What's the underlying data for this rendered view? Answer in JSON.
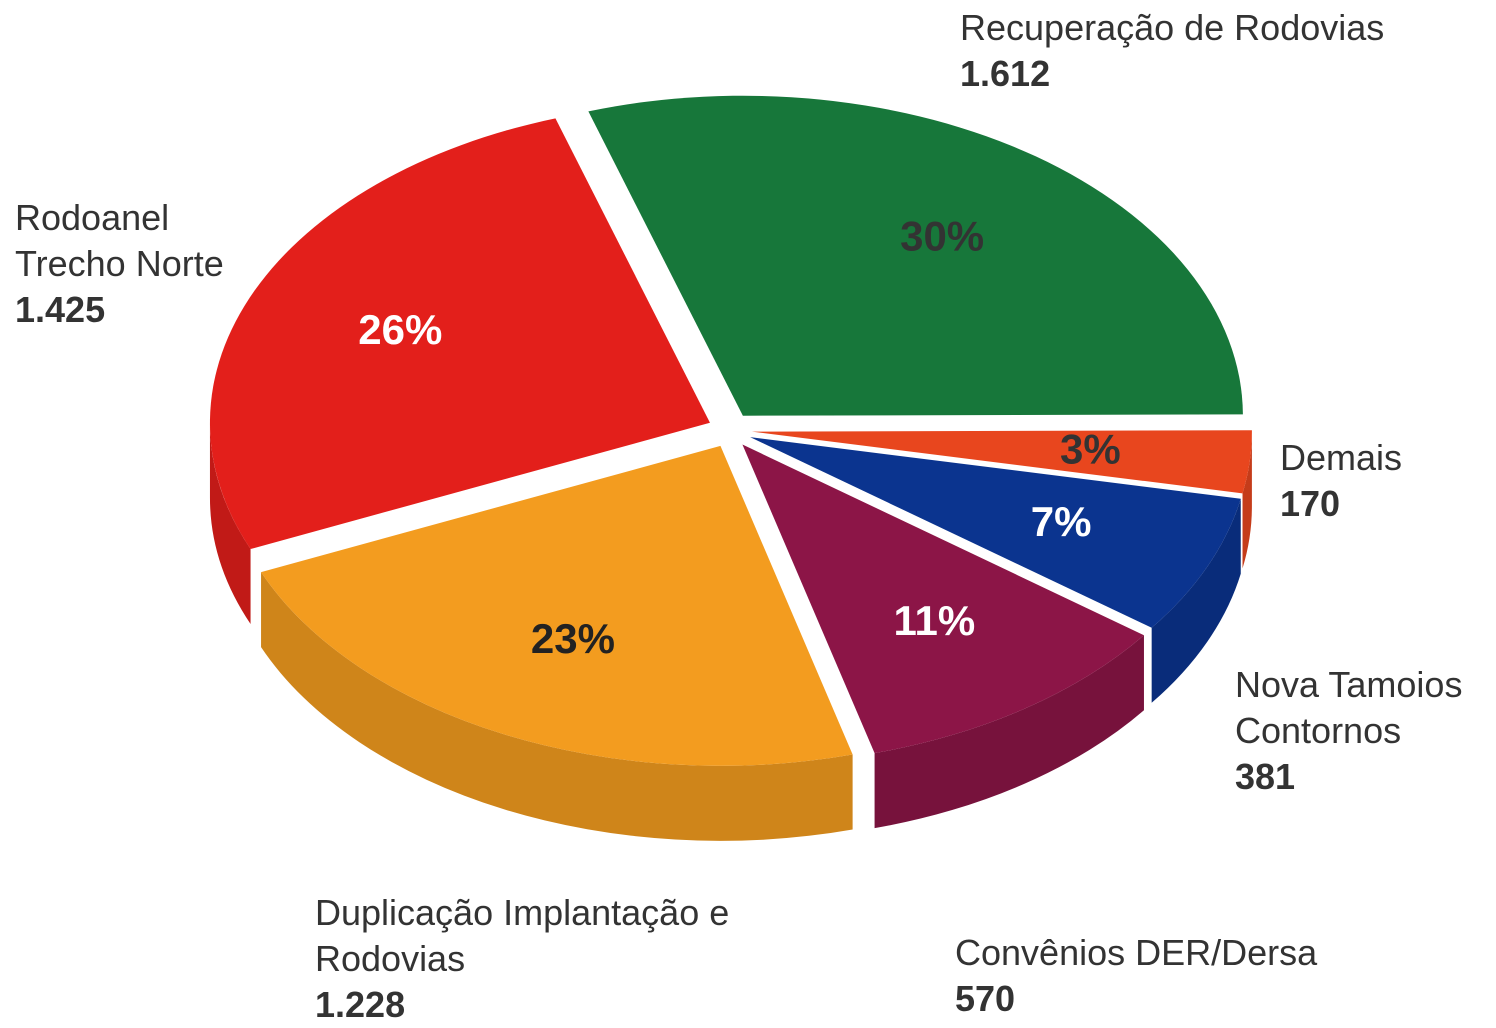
{
  "chart_data": {
    "type": "pie",
    "categories": [
      "Recuperação de Rodovias",
      "Demais",
      "Nova Tamoios Contornos",
      "Convênios DER/Dersa",
      "Duplicação Implantação e Rodovias",
      "Rodoanel Trecho Norte"
    ],
    "values": [
      1612,
      170,
      381,
      570,
      1228,
      1425
    ],
    "value_labels": [
      "1.612",
      "170",
      "381",
      "570",
      "1.228",
      "1.425"
    ],
    "percent_labels": [
      "30%",
      "3%",
      "7%",
      "11%",
      "23%",
      "26%"
    ],
    "colors": [
      "#17773a",
      "#e8461e",
      "#0b348f",
      "#8c1547",
      "#f39c1f",
      "#e31f1b"
    ],
    "percent_label_colors": [
      "#333333",
      "#333333",
      "#ffffff",
      "#ffffff",
      "#222222",
      "#ffffff"
    ]
  }
}
